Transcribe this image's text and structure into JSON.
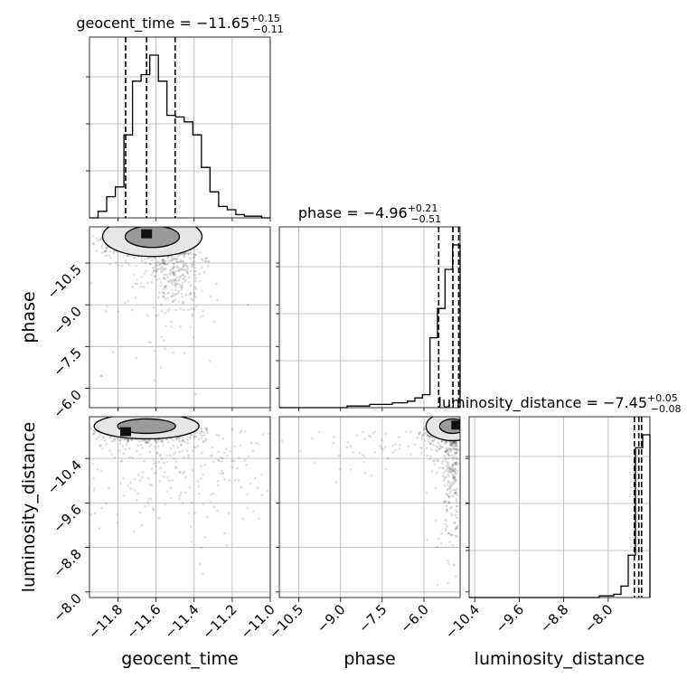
{
  "chart_data": {
    "type": "corner",
    "parameters": [
      {
        "name": "geocent_time",
        "label": "geocent_time",
        "title_main": "geocent_time = −11.65",
        "title_sup": "+0.15",
        "title_sub": "−0.11",
        "range": [
          -11.95,
          -11.0
        ],
        "ticks": [
          -11.8,
          -11.6,
          -11.4,
          -11.2,
          -11.0
        ],
        "tick_labels": [
          "−11.8",
          "−11.6",
          "−11.4",
          "−11.2",
          "−11.0"
        ],
        "quantiles": [
          -11.76,
          -11.65,
          -11.5
        ],
        "hist": [
          0.0,
          0.04,
          0.13,
          0.19,
          0.51,
          0.84,
          0.88,
          1.0,
          0.84,
          0.63,
          0.62,
          0.59,
          0.51,
          0.31,
          0.16,
          0.07,
          0.05,
          0.02,
          0.01,
          0.01,
          0.0
        ]
      },
      {
        "name": "phase",
        "label": "phase",
        "title_main": "phase = −4.96",
        "title_sup": "+0.21",
        "title_sub": "−0.51",
        "range": [
          -11.2,
          -4.7
        ],
        "ticks": [
          -10.5,
          -9.0,
          -7.5,
          -6.0
        ],
        "tick_labels": [
          "−10.5",
          "−9.0",
          "−7.5",
          "−6.0"
        ],
        "quantiles": [
          -5.47,
          -4.96,
          -4.75
        ],
        "hist": [
          0.0,
          0.0,
          0.0,
          0.0,
          0.0,
          0.0,
          0.0,
          0.0,
          0.0,
          0.01,
          0.01,
          0.01,
          0.02,
          0.02,
          0.02,
          0.03,
          0.03,
          0.04,
          0.06,
          0.08,
          0.43,
          0.61,
          0.85,
          1.0
        ]
      },
      {
        "name": "luminosity_distance",
        "label": "luminosity_distance",
        "title_main": "luminosity_distance = −7.45",
        "title_sup": "+0.05",
        "title_sub": "−0.08",
        "range": [
          -10.5,
          -7.25
        ],
        "ticks": [
          -10.4,
          -9.6,
          -8.8,
          -8.0
        ],
        "tick_labels": [
          "−10.4",
          "−9.6",
          "−8.8",
          "−8.0"
        ],
        "quantiles": [
          -7.53,
          -7.45,
          -7.4
        ],
        "hist": [
          0.0,
          0.0,
          0.0,
          0.0,
          0.0,
          0.0,
          0.0,
          0.0,
          0.0,
          0.0,
          0.0,
          0.0,
          0.0,
          0.0,
          0.0,
          0.0,
          0.0,
          0.0,
          0.01,
          0.01,
          0.02,
          0.07,
          0.26,
          0.92,
          1.0
        ]
      }
    ],
    "y_tick_labels_rows": {
      "phase": [
        "−6.0",
        "−7.5",
        "−9.0",
        "−10.5"
      ],
      "luminosity_distance": [
        "−8.0",
        "−8.8",
        "−9.6",
        "−10.4"
      ]
    },
    "grid": true,
    "contours": true,
    "scatter_points": true
  }
}
